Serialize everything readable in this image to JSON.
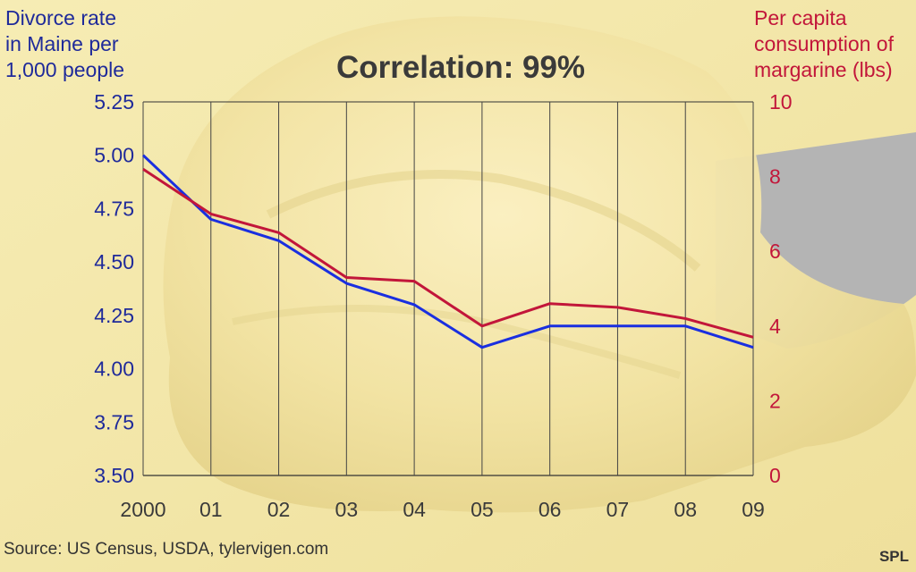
{
  "chart_data": {
    "type": "line",
    "title": "Correlation: 99%",
    "left_axis_label": [
      "Divorce rate",
      "in Maine per",
      "1,000 people"
    ],
    "right_axis_label": [
      "Per capita",
      "consumption of",
      "margarine (lbs)"
    ],
    "categories": [
      "2000",
      "01",
      "02",
      "03",
      "04",
      "05",
      "06",
      "07",
      "08",
      "09"
    ],
    "left_ticks": [
      "5.25",
      "5.00",
      "4.75",
      "4.50",
      "4.25",
      "4.00",
      "3.75",
      "3.50"
    ],
    "right_ticks": [
      "10",
      "8",
      "6",
      "4",
      "2",
      "0"
    ],
    "left_ylim": [
      3.5,
      5.25
    ],
    "right_ylim": [
      0,
      10
    ],
    "grid": "vertical",
    "series": [
      {
        "axis": "left",
        "color": "#1a2fe0",
        "values": [
          5.0,
          4.7,
          4.6,
          4.4,
          4.3,
          4.1,
          4.2,
          4.2,
          4.2,
          4.1
        ]
      },
      {
        "axis": "right",
        "color": "#c2163a",
        "values": [
          8.2,
          7.0,
          6.5,
          5.3,
          5.2,
          4.0,
          4.6,
          4.5,
          4.2,
          3.7
        ]
      }
    ]
  },
  "source": "Source: US Census, USDA, tylervigen.com",
  "credit": "SPL",
  "colors": {
    "left_axis": "#1f2a9a",
    "right_axis": "#c2163a",
    "background": "#f3e7a8"
  }
}
